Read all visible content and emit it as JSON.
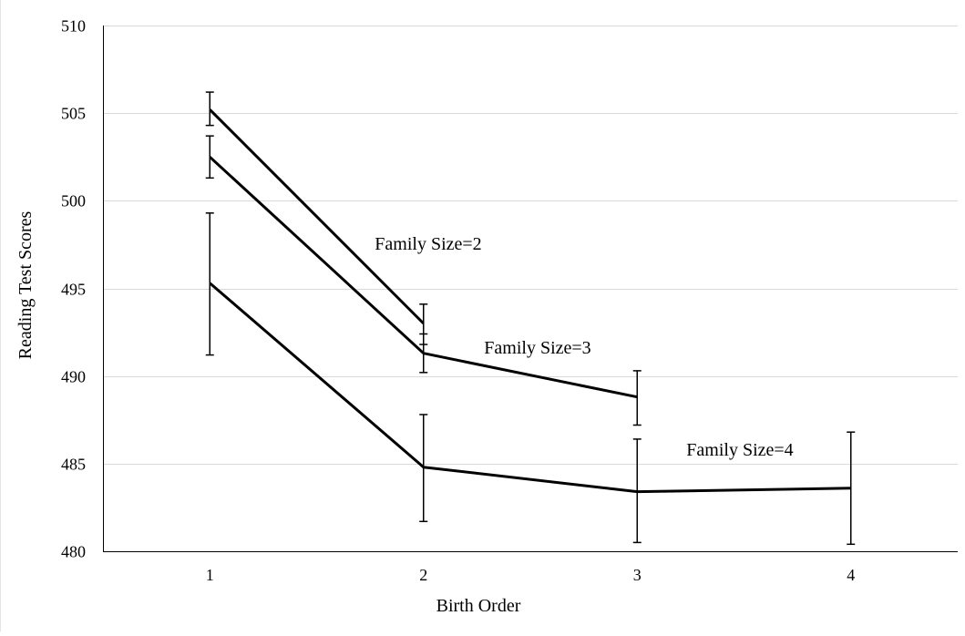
{
  "chart_data": {
    "type": "line",
    "title": "",
    "xlabel": "Birth Order",
    "ylabel": "Reading Test Scores",
    "x_ticks": [
      "1",
      "2",
      "3",
      "4"
    ],
    "y_ticks": [
      "480",
      "485",
      "490",
      "495",
      "500",
      "505",
      "510"
    ],
    "xlim": [
      0.5,
      4.5
    ],
    "ylim": [
      480,
      510
    ],
    "grid": "horizontal",
    "legend": "none",
    "line_color": "#000000",
    "grid_color": "#d9d9d9",
    "series": [
      {
        "name": "Family Size=2",
        "x": [
          1,
          2
        ],
        "y": [
          505.2,
          493.0
        ],
        "err_low": [
          504.3,
          491.8
        ],
        "err_high": [
          506.2,
          494.1
        ]
      },
      {
        "name": "Family Size=3",
        "x": [
          1,
          2,
          3
        ],
        "y": [
          502.5,
          491.3,
          488.8
        ],
        "err_low": [
          501.3,
          490.2,
          487.2
        ],
        "err_high": [
          503.7,
          492.4,
          490.3
        ]
      },
      {
        "name": "Family Size=4",
        "x": [
          1,
          2,
          3,
          4
        ],
        "y": [
          495.3,
          484.8,
          483.4,
          483.6
        ],
        "err_low": [
          491.2,
          481.7,
          480.5,
          480.4
        ],
        "err_high": [
          499.3,
          487.8,
          486.4,
          486.8
        ]
      }
    ]
  }
}
